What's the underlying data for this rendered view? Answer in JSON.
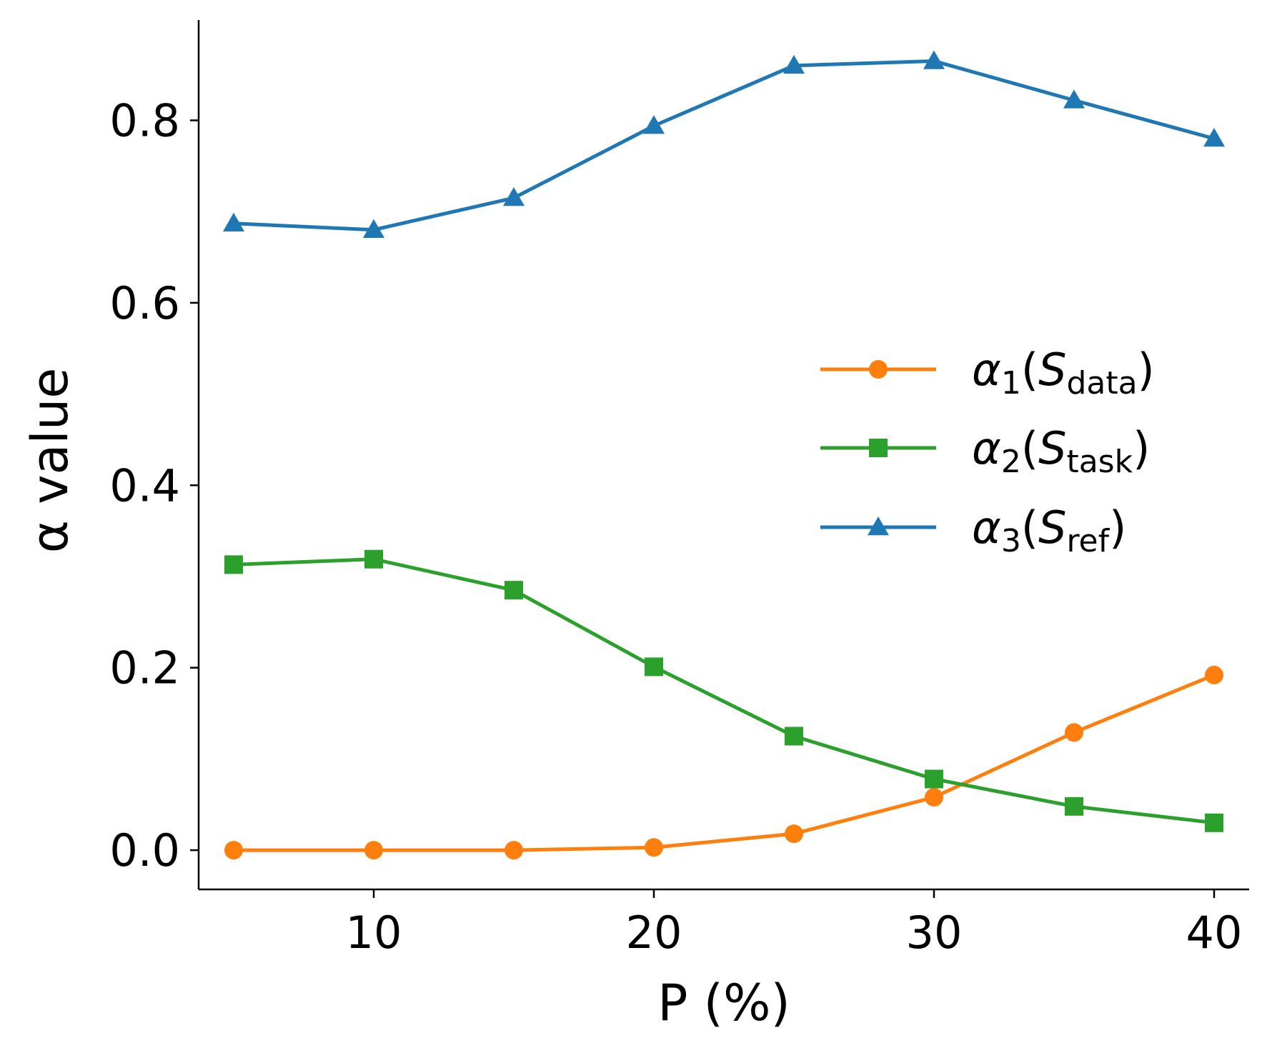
{
  "chart_data": {
    "type": "line",
    "title": "",
    "xlabel": "P (%)",
    "ylabel": "α value",
    "xlim": [
      3.75,
      41.25
    ],
    "ylim": [
      -0.043,
      0.91
    ],
    "xticks": [
      10,
      20,
      30,
      40
    ],
    "yticks": [
      0.0,
      0.2,
      0.4,
      0.6,
      0.8
    ],
    "x": [
      5,
      10,
      15,
      20,
      25,
      30,
      35,
      40
    ],
    "grid": false,
    "legend_position": "center-right",
    "series": [
      {
        "name": "α1(Sdata)",
        "greek": "α",
        "index": "1",
        "symbol": "S",
        "subscript": "data",
        "color": "#ff7f0e",
        "marker": "circle",
        "values": [
          0.0,
          0.0,
          0.0,
          0.003,
          0.018,
          0.058,
          0.129,
          0.192
        ]
      },
      {
        "name": "α2(Stask)",
        "greek": "α",
        "index": "2",
        "symbol": "S",
        "subscript": "task",
        "color": "#2ca02c",
        "marker": "square",
        "values": [
          0.313,
          0.319,
          0.285,
          0.201,
          0.125,
          0.078,
          0.048,
          0.03
        ]
      },
      {
        "name": "α3(Sref)",
        "greek": "α",
        "index": "3",
        "symbol": "S",
        "subscript": "ref",
        "color": "#1f77b4",
        "marker": "triangle",
        "values": [
          0.687,
          0.68,
          0.715,
          0.794,
          0.86,
          0.865,
          0.822,
          0.78
        ]
      }
    ]
  }
}
